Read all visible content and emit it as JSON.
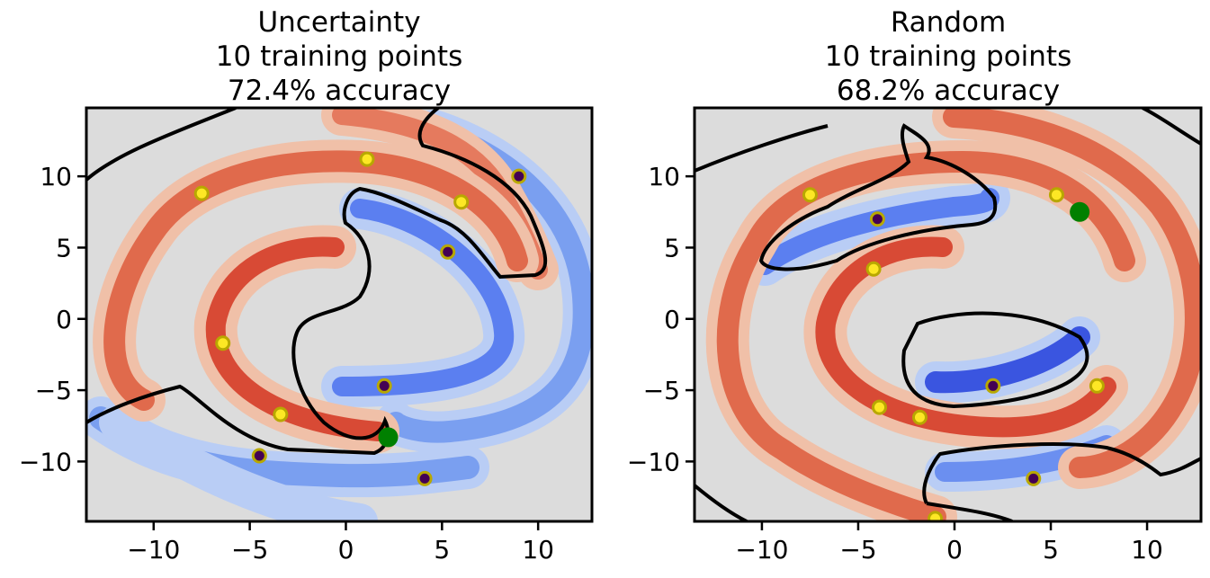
{
  "chart_data": [
    {
      "type": "scatter",
      "title_lines": [
        "Uncertainty",
        "10 training points",
        "72.4% accuracy"
      ],
      "xlim": [
        -13.5,
        12.8
      ],
      "ylim": [
        -14.2,
        14.8
      ],
      "xticks": [
        -10,
        -5,
        0,
        5,
        10
      ],
      "xtick_labels": [
        "−10",
        "−5",
        "0",
        "5",
        "10"
      ],
      "yticks": [
        -10,
        -5,
        0,
        5,
        10
      ],
      "ytick_labels": [
        "−10",
        "−5",
        "0",
        "5",
        "10"
      ],
      "grid": false,
      "point_colors": {
        "class_0": "#fde725",
        "class_1": "#440154",
        "next_query": "#008000"
      },
      "training_points": [
        {
          "x": -7.5,
          "y": 8.8,
          "class": 0
        },
        {
          "x": 1.1,
          "y": 11.2,
          "class": 0
        },
        {
          "x": 6.0,
          "y": 8.2,
          "class": 0
        },
        {
          "x": -6.4,
          "y": -1.7,
          "class": 0
        },
        {
          "x": -3.4,
          "y": -6.7,
          "class": 0
        },
        {
          "x": 9.0,
          "y": 10.0,
          "class": 1
        },
        {
          "x": 5.3,
          "y": 4.7,
          "class": 1
        },
        {
          "x": 2.0,
          "y": -4.7,
          "class": 1
        },
        {
          "x": -4.5,
          "y": -9.6,
          "class": 1
        },
        {
          "x": 4.1,
          "y": -11.2,
          "class": 1
        }
      ],
      "next_query": {
        "x": 2.2,
        "y": -8.3
      }
    },
    {
      "type": "scatter",
      "title_lines": [
        "Random",
        "10 training points",
        "68.2% accuracy"
      ],
      "xlim": [
        -13.5,
        12.8
      ],
      "ylim": [
        -14.2,
        14.8
      ],
      "xticks": [
        -10,
        -5,
        0,
        5,
        10
      ],
      "xtick_labels": [
        "−10",
        "−5",
        "0",
        "5",
        "10"
      ],
      "yticks": [
        -10,
        -5,
        0,
        5,
        10
      ],
      "ytick_labels": [
        "−10",
        "−5",
        "0",
        "5",
        "10"
      ],
      "grid": false,
      "point_colors": {
        "class_0": "#fde725",
        "class_1": "#440154",
        "next_query": "#008000"
      },
      "training_points": [
        {
          "x": -7.5,
          "y": 8.7,
          "class": 0
        },
        {
          "x": 5.3,
          "y": 8.7,
          "class": 0
        },
        {
          "x": -4.2,
          "y": 3.5,
          "class": 0
        },
        {
          "x": -3.9,
          "y": -6.2,
          "class": 0
        },
        {
          "x": -1.8,
          "y": -6.9,
          "class": 0
        },
        {
          "x": 7.4,
          "y": -4.7,
          "class": 0
        },
        {
          "x": -1.0,
          "y": -14.0,
          "class": 0
        },
        {
          "x": -4.0,
          "y": 7.0,
          "class": 1
        },
        {
          "x": 2.0,
          "y": -4.7,
          "class": 1
        },
        {
          "x": 4.1,
          "y": -11.2,
          "class": 1
        }
      ],
      "next_query": {
        "x": 6.5,
        "y": 7.5
      }
    }
  ]
}
